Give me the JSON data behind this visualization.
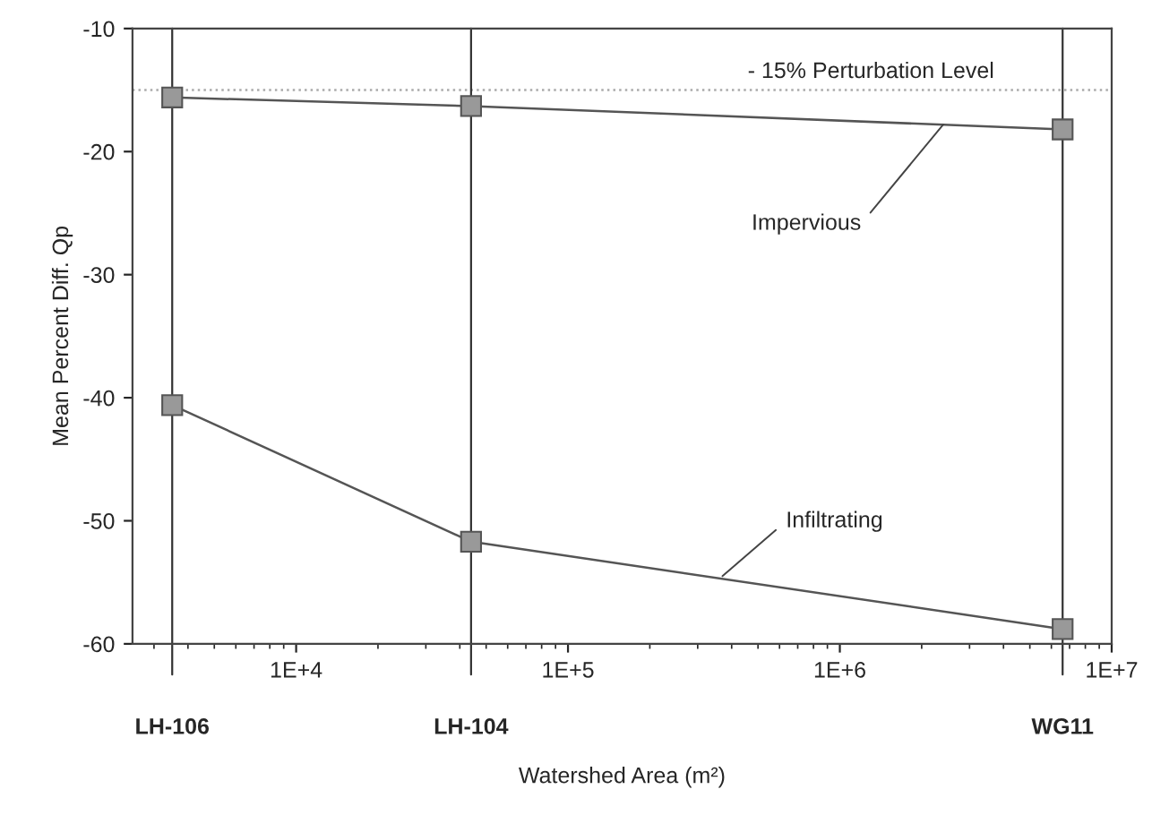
{
  "chart_data": {
    "type": "line",
    "xlabel": "Watershed Area (m²)",
    "ylabel": "Mean Percent Diff. Qp",
    "log": "x",
    "xlim": [
      2500,
      10000000
    ],
    "ylim": [
      -60,
      -10
    ],
    "xticks": [
      {
        "value": 10000,
        "label": "1E+4"
      },
      {
        "value": 100000,
        "label": "1E+5"
      },
      {
        "value": 1000000,
        "label": "1E+6"
      },
      {
        "value": 10000000,
        "label": "1E+7"
      }
    ],
    "yticks": [
      -60,
      -50,
      -40,
      -30,
      -20,
      -10
    ],
    "x": [
      3500,
      44000,
      6600000
    ],
    "series": [
      {
        "color": "#555555",
        "values": [
          -15.6,
          -16.3,
          -18.2
        ]
      },
      {
        "color": "#555555",
        "values": [
          -40.6,
          -51.7,
          -58.8
        ]
      }
    ],
    "marker": "square",
    "grid": false,
    "ref_lines": [
      {
        "axis": "y",
        "value": -15,
        "label": "- 15% Perturbation Level",
        "color": "#aaaaaa",
        "line_style": "dotted"
      },
      {
        "axis": "x",
        "value": 3500,
        "label": "LH-106",
        "color": "#333333",
        "line_style": "solid"
      },
      {
        "axis": "x",
        "value": 44000,
        "label": "LH-104",
        "color": "#333333",
        "line_style": "solid"
      },
      {
        "axis": "x",
        "value": 6600000,
        "label": "WG11",
        "color": "#333333",
        "line_style": "solid"
      }
    ],
    "annotations": [
      {
        "text": "Impervious",
        "x": 2400000,
        "y": -17.8
      },
      {
        "text": "Infiltrating",
        "x": 370000,
        "y": -54.5
      }
    ]
  }
}
